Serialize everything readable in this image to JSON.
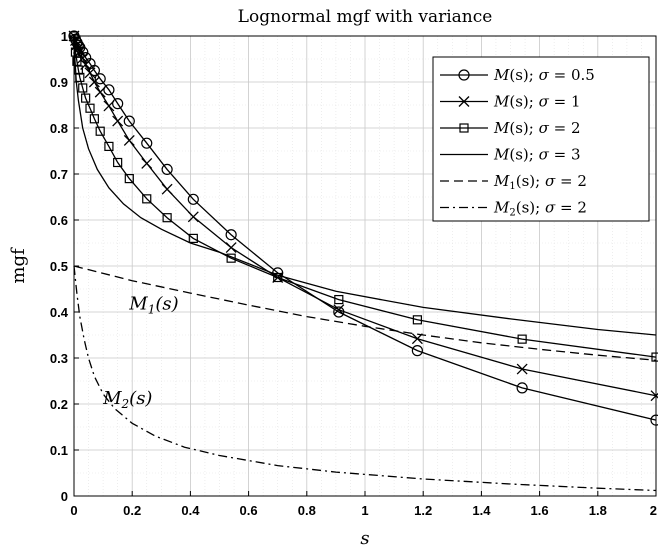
{
  "chart_data": {
    "type": "line",
    "title": "Lognormal mgf with variance",
    "xlabel": "s",
    "ylabel": "mgf",
    "xlim": [
      0,
      2
    ],
    "ylim": [
      0,
      1
    ],
    "grid": true,
    "minor_grid": true,
    "legend_position": "top-right",
    "xticks": [
      "0",
      "0.2",
      "0.4",
      "0.6",
      "0.8",
      "1",
      "1.2",
      "1.4",
      "1.6",
      "1.8",
      "2"
    ],
    "yticks": [
      "0",
      "0.1",
      "0.2",
      "0.3",
      "0.4",
      "0.5",
      "0.6",
      "0.7",
      "0.8",
      "0.9",
      "1"
    ],
    "annotations": [
      {
        "text": "M1(s)",
        "x": 0.19,
        "y": 0.405
      },
      {
        "text": "M2(s)",
        "x": 0.1,
        "y": 0.2
      }
    ],
    "series": [
      {
        "name": "M(s); σ = 0.5",
        "marker": "o",
        "dash": "solid",
        "x": [
          0,
          0.005,
          0.01,
          0.015,
          0.02,
          0.03,
          0.04,
          0.055,
          0.07,
          0.09,
          0.12,
          0.15,
          0.19,
          0.25,
          0.32,
          0.41,
          0.54,
          0.7,
          0.91,
          1.18,
          1.54,
          2
        ],
        "y": [
          1,
          0.993,
          0.986,
          0.98,
          0.975,
          0.965,
          0.953,
          0.94,
          0.925,
          0.907,
          0.883,
          0.853,
          0.815,
          0.767,
          0.71,
          0.645,
          0.568,
          0.485,
          0.4,
          0.316,
          0.235,
          0.165
        ]
      },
      {
        "name": "M(s); σ = 1",
        "marker": "x",
        "dash": "solid",
        "x": [
          0,
          0.005,
          0.01,
          0.015,
          0.02,
          0.03,
          0.04,
          0.055,
          0.07,
          0.09,
          0.12,
          0.15,
          0.19,
          0.25,
          0.32,
          0.41,
          0.54,
          0.7,
          0.91,
          1.18,
          1.54,
          2
        ],
        "y": [
          1,
          0.99,
          0.981,
          0.973,
          0.966,
          0.952,
          0.938,
          0.92,
          0.9,
          0.878,
          0.848,
          0.815,
          0.773,
          0.723,
          0.667,
          0.607,
          0.54,
          0.475,
          0.405,
          0.342,
          0.276,
          0.218
        ]
      },
      {
        "name": "M(s); σ = 2",
        "marker": "s",
        "dash": "solid",
        "x": [
          0,
          0.005,
          0.01,
          0.015,
          0.02,
          0.03,
          0.04,
          0.055,
          0.07,
          0.09,
          0.12,
          0.15,
          0.19,
          0.25,
          0.32,
          0.41,
          0.54,
          0.7,
          0.91,
          1.18,
          1.54,
          2
        ],
        "y": [
          1,
          0.965,
          0.945,
          0.926,
          0.91,
          0.887,
          0.865,
          0.843,
          0.82,
          0.793,
          0.76,
          0.725,
          0.69,
          0.646,
          0.605,
          0.56,
          0.517,
          0.475,
          0.427,
          0.383,
          0.341,
          0.302
        ]
      },
      {
        "name": "M(s); σ = 3",
        "marker": "none",
        "dash": "solid",
        "x": [
          0,
          0.003,
          0.008,
          0.015,
          0.03,
          0.05,
          0.08,
          0.12,
          0.17,
          0.23,
          0.3,
          0.4,
          0.5,
          0.7,
          0.9,
          1.2,
          1.5,
          1.8,
          2
        ],
        "y": [
          1,
          0.95,
          0.9,
          0.86,
          0.8,
          0.755,
          0.71,
          0.67,
          0.635,
          0.605,
          0.58,
          0.55,
          0.53,
          0.48,
          0.445,
          0.41,
          0.385,
          0.362,
          0.35
        ]
      },
      {
        "name": "M1(s); σ = 2",
        "marker": "none",
        "dash": "dashed",
        "x": [
          0,
          0.2,
          0.4,
          0.6,
          0.8,
          1,
          1.2,
          1.4,
          1.6,
          1.8,
          2
        ],
        "y": [
          0.5,
          0.468,
          0.441,
          0.415,
          0.39,
          0.369,
          0.35,
          0.333,
          0.319,
          0.306,
          0.295
        ]
      },
      {
        "name": "M2(s); σ = 2",
        "marker": "none",
        "dash": "dashdot",
        "x": [
          0,
          0.01,
          0.02,
          0.035,
          0.05,
          0.07,
          0.1,
          0.14,
          0.2,
          0.28,
          0.38,
          0.5,
          0.7,
          0.9,
          1.2,
          1.5,
          1.8,
          2
        ],
        "y": [
          0.5,
          0.44,
          0.39,
          0.34,
          0.3,
          0.26,
          0.222,
          0.19,
          0.158,
          0.13,
          0.106,
          0.088,
          0.066,
          0.052,
          0.037,
          0.026,
          0.017,
          0.012
        ]
      }
    ]
  }
}
